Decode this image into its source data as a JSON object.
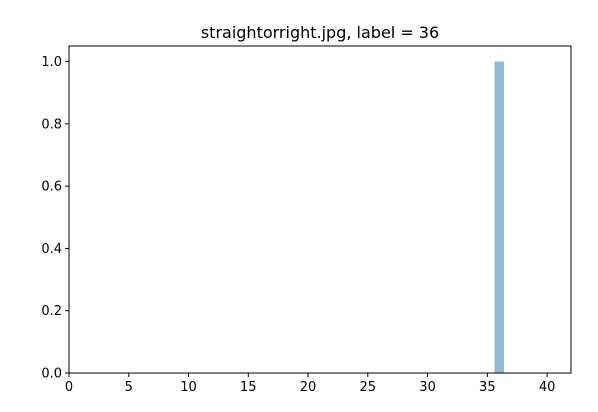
{
  "chart_data": {
    "type": "bar",
    "title": "straightorright.jpg, label = 36",
    "xlabel": "",
    "ylabel": "",
    "xlim": [
      0,
      42
    ],
    "ylim": [
      0,
      1.05
    ],
    "x_ticks": [
      0,
      5,
      10,
      15,
      20,
      25,
      30,
      35,
      40
    ],
    "y_ticks": [
      "0.0",
      "0.2",
      "0.4",
      "0.6",
      "0.8",
      "1.0"
    ],
    "bar_width": 0.8,
    "bar_color": "#8fbbd9",
    "grid": false,
    "bars": [
      {
        "x": 36,
        "value": 1.0
      }
    ]
  }
}
